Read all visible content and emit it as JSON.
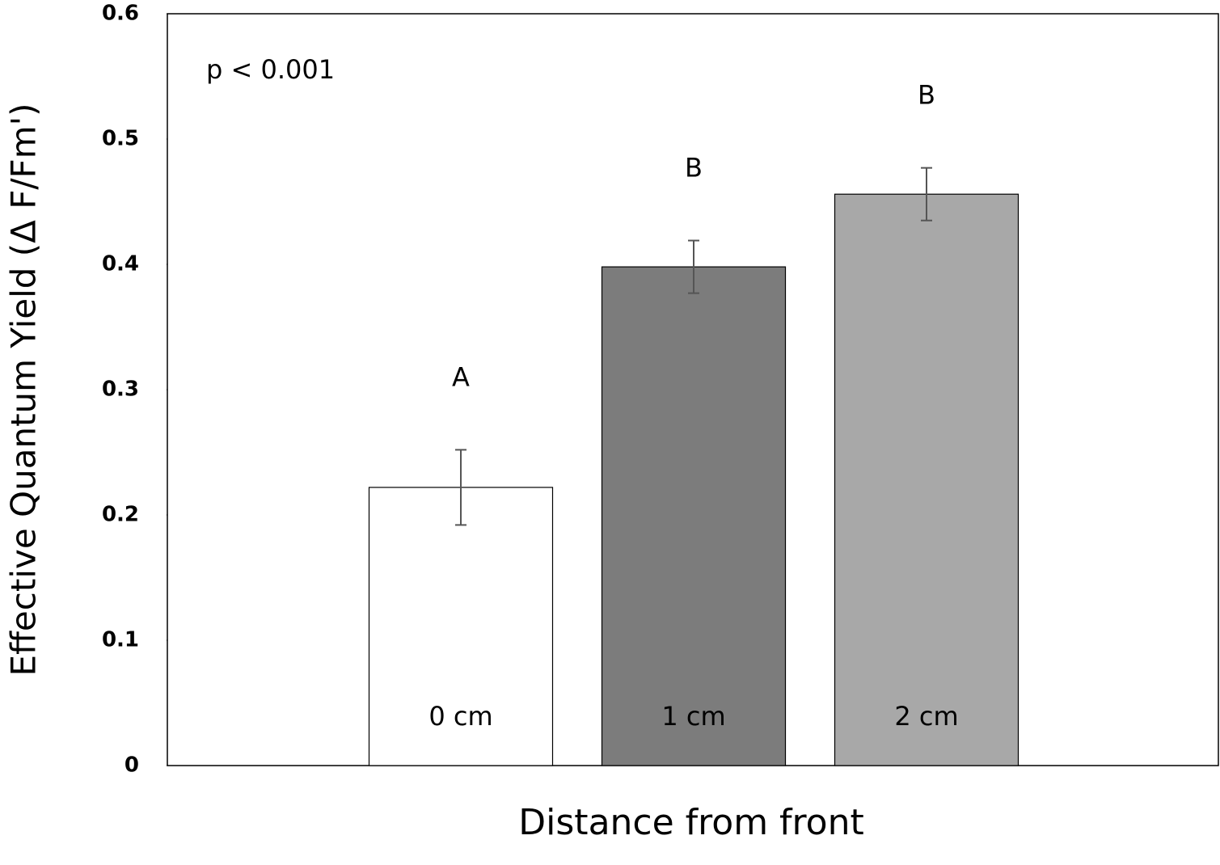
{
  "chart_data": {
    "type": "bar",
    "y_label": "Effective Quantum Yield (Δ F/Fm')",
    "x_label": "Distance from front",
    "annotation": "p < 0.001",
    "categories": [
      "0 cm",
      "1 cm",
      "2 cm"
    ],
    "values": [
      0.222,
      0.398,
      0.456
    ],
    "errors": [
      0.03,
      0.021,
      0.021
    ],
    "significance_labels": [
      "A",
      "B",
      "B"
    ],
    "colors": [
      "#ffffff",
      "#7c7c7c",
      "#a8a8a8"
    ],
    "ylim": [
      0,
      0.6
    ],
    "yticks": [
      0,
      0.1,
      0.2,
      0.3,
      0.4,
      0.5,
      0.6
    ],
    "grid": false
  }
}
